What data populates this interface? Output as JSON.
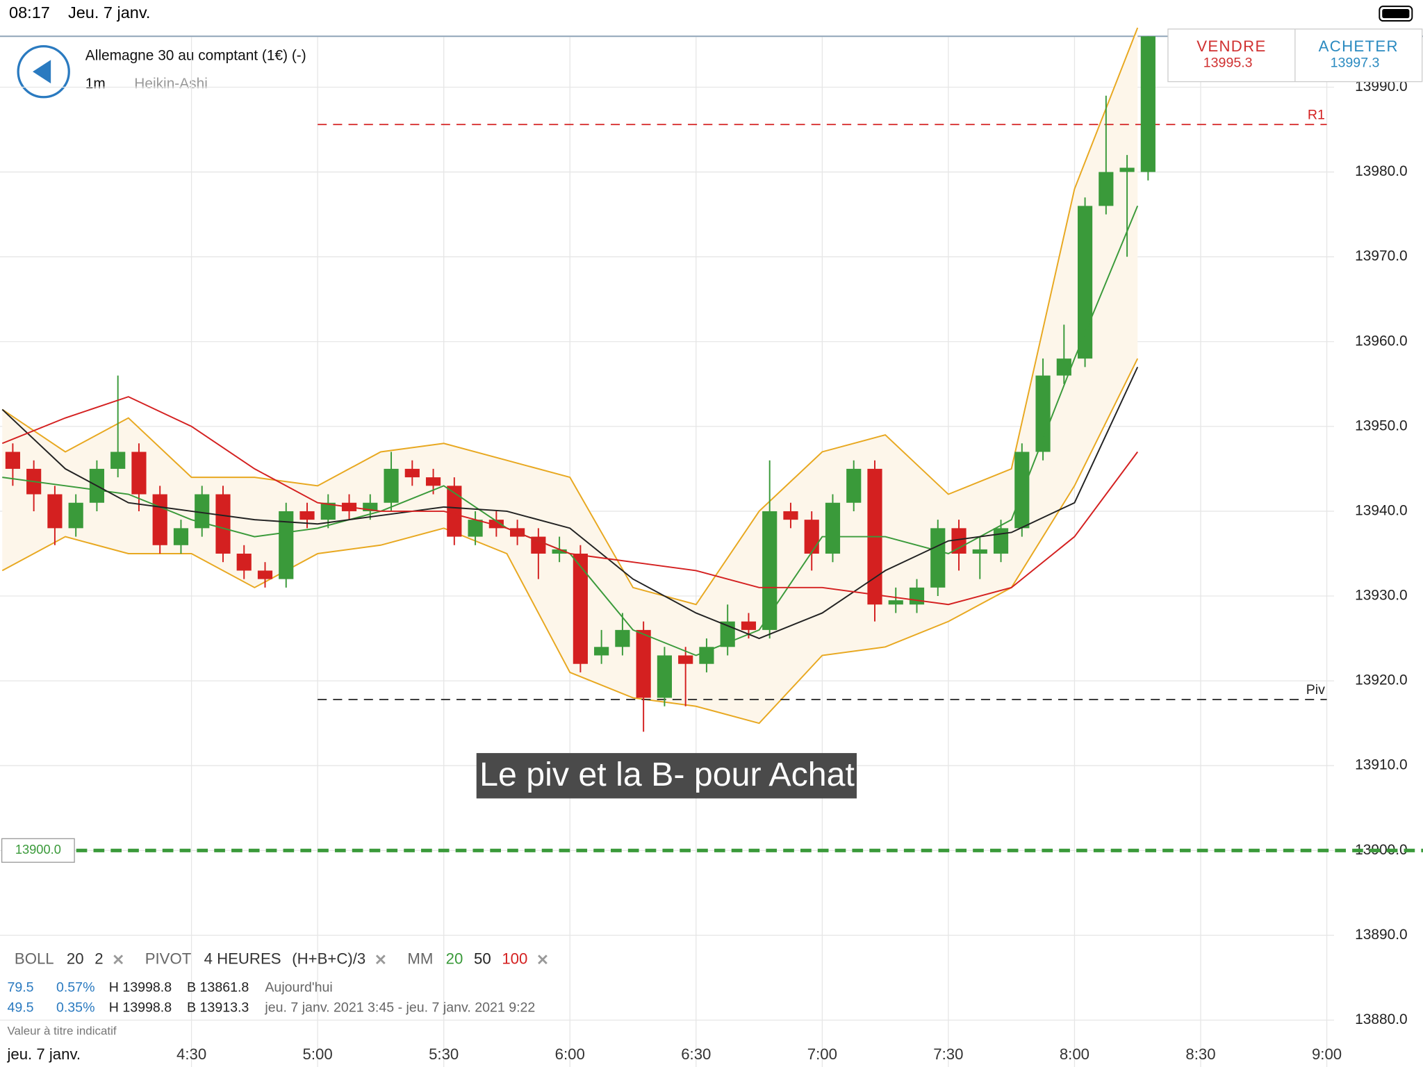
{
  "status_bar": {
    "time": "08:17",
    "date": "Jeu. 7 janv."
  },
  "header": {
    "title": "Allemagne 30 au comptant (1€) (-)",
    "interval": "1m",
    "style": "Heikin-Ashi"
  },
  "prices": {
    "sell_label": "VENDRE",
    "sell": 13995.3,
    "buy_label": "ACHETER",
    "buy": 13997.3
  },
  "annotation": "Le piv et la B- pour Achat",
  "indicators": [
    {
      "name": "BOLL",
      "params": [
        20,
        2
      ],
      "param_colors": [
        "#333",
        "#333"
      ]
    },
    {
      "name": "PIVOT",
      "params": [
        "4 HEURES",
        "(H+B+C)/3"
      ],
      "param_colors": [
        "#333",
        "#333"
      ]
    },
    {
      "name": "MM",
      "params": [
        20,
        50,
        100
      ],
      "param_colors": [
        "#3a9a3a",
        "#222",
        "#d42020"
      ]
    }
  ],
  "info_rows": [
    [
      "79.5",
      "0.57%",
      "H 13998.8",
      "B 13861.8",
      "Aujourd'hui"
    ],
    [
      "49.5",
      "0.35%",
      "H 13998.8",
      "B 13913.3",
      "jeu. 7 janv. 2021 3:45 - jeu. 7 janv. 2021 9:22"
    ]
  ],
  "disclaimer": "Valeur à titre indicatif",
  "date_label": "jeu. 7 janv.",
  "chart_data": {
    "type": "candlestick",
    "xlim": [
      225,
      540
    ],
    "xticks": [
      {
        "value": 270,
        "label": "4:30"
      },
      {
        "value": 300,
        "label": "5:00"
      },
      {
        "value": 330,
        "label": "5:30"
      },
      {
        "value": 360,
        "label": "6:00"
      },
      {
        "value": 390,
        "label": "6:30"
      },
      {
        "value": 420,
        "label": "7:00"
      },
      {
        "value": 450,
        "label": "7:30"
      },
      {
        "value": 480,
        "label": "8:00"
      },
      {
        "value": 510,
        "label": "8:30"
      },
      {
        "value": 540,
        "label": "9:00"
      }
    ],
    "ylim": [
      13878,
      13996
    ],
    "yticks": [
      {
        "value": 13880,
        "label": "13880.0"
      },
      {
        "value": 13890,
        "label": "13890.0"
      },
      {
        "value": 13900,
        "label": "13900.0"
      },
      {
        "value": 13910,
        "label": "13910.0"
      },
      {
        "value": 13920,
        "label": "13920.0"
      },
      {
        "value": 13930,
        "label": "13930.0"
      },
      {
        "value": 13940,
        "label": "13940.0"
      },
      {
        "value": 13950,
        "label": "13950.0"
      },
      {
        "value": 13960,
        "label": "13960.0"
      },
      {
        "value": 13970,
        "label": "13970.0"
      },
      {
        "value": 13980,
        "label": "13980.0"
      },
      {
        "value": 13990,
        "label": "13990.0"
      }
    ],
    "grid": true,
    "up_color": "#3a9a3a",
    "down_color": "#d42020",
    "x": [
      225,
      230,
      235,
      240,
      245,
      250,
      255,
      260,
      265,
      270,
      275,
      280,
      285,
      290,
      295,
      300,
      305,
      310,
      315,
      320,
      325,
      330,
      335,
      340,
      345,
      350,
      355,
      360,
      365,
      370,
      375,
      380,
      385,
      390,
      395,
      400,
      405,
      410,
      415,
      420,
      425,
      430,
      435,
      440,
      445,
      450,
      455,
      460,
      465,
      470,
      475,
      480,
      485,
      490,
      495
    ],
    "open": [
      13947,
      13945,
      13942,
      13938,
      13941,
      13945,
      13947,
      13942,
      13936,
      13938,
      13942,
      13935,
      13933,
      13932,
      13940,
      13939,
      13941,
      13940,
      13941,
      13945,
      13944,
      13943,
      13937,
      13939,
      13938,
      13937,
      13935,
      13935,
      13923,
      13924,
      13926,
      13918,
      13923,
      13922,
      13924,
      13927,
      13926,
      13940,
      13939,
      13935,
      13941,
      13945,
      13929,
      13929,
      13931,
      13938,
      13935,
      13935,
      13938,
      13947,
      13956,
      13958,
      13976,
      13980,
      13980
    ],
    "close": [
      13945,
      13942,
      13938,
      13941,
      13945,
      13947,
      13942,
      13936,
      13938,
      13942,
      13935,
      13933,
      13932,
      13940,
      13939,
      13941,
      13940,
      13941,
      13945,
      13944,
      13943,
      13937,
      13939,
      13938,
      13937,
      13935,
      13935.5,
      13922,
      13924,
      13926,
      13918,
      13923,
      13922,
      13924,
      13927,
      13926,
      13940,
      13939,
      13935,
      13941,
      13945,
      13929,
      13929.5,
      13931,
      13938,
      13935,
      13935.5,
      13938,
      13947,
      13956,
      13958,
      13976,
      13980,
      13980.5,
      13996
    ],
    "high": [
      13948,
      13946,
      13943,
      13942,
      13946,
      13956,
      13948,
      13943,
      13939,
      13943,
      13943,
      13936,
      13934,
      13941,
      13941,
      13942,
      13942,
      13942,
      13947,
      13946,
      13945,
      13944,
      13940,
      13940,
      13939,
      13938,
      13937,
      13936,
      13926,
      13928,
      13927,
      13924,
      13924,
      13925,
      13929,
      13928,
      13946,
      13941,
      13940,
      13942,
      13946,
      13946,
      13931,
      13932,
      13939,
      13939,
      13937,
      13939,
      13948,
      13958,
      13962,
      13977,
      13989,
      13982,
      13996
    ],
    "low": [
      13943,
      13940,
      13936,
      13937,
      13940,
      13944,
      13940,
      13935,
      13935,
      13937,
      13934,
      13932,
      13931,
      13931,
      13938,
      13938,
      13939,
      13939,
      13940,
      13943,
      13942,
      13936,
      13936,
      13937,
      13936,
      13932,
      13934,
      13921,
      13922,
      13923,
      13914,
      13917,
      13917,
      13921,
      13923,
      13925,
      13925,
      13938,
      13933,
      13934,
      13940,
      13927,
      13928,
      13928,
      13930,
      13933,
      13932,
      13934,
      13937,
      13946,
      13955,
      13957,
      13975,
      13970,
      13979
    ],
    "line_x": [
      225,
      240,
      255,
      270,
      285,
      300,
      315,
      330,
      345,
      360,
      375,
      390,
      405,
      420,
      435,
      450,
      465,
      480,
      495
    ],
    "band": {
      "color": "#e8a820",
      "fill": "#fdf6ea",
      "upper": [
        13952,
        13947,
        13951,
        13944,
        13944,
        13943,
        13947,
        13948,
        13946,
        13944,
        13931,
        13929,
        13940,
        13947,
        13949,
        13942,
        13945,
        13978,
        13997
      ],
      "lower": [
        13933,
        13937,
        13935,
        13935,
        13931,
        13935,
        13936,
        13938,
        13935,
        13921,
        13918,
        13917,
        13915,
        13923,
        13924,
        13927,
        13931,
        13943,
        13958
      ]
    },
    "lines": [
      {
        "color": "#3a9a3a",
        "values": [
          13944,
          13943,
          13942,
          13939,
          13937,
          13938,
          13940,
          13943,
          13938,
          13935,
          13926,
          13923,
          13926,
          13937,
          13937,
          13935,
          13939,
          13958,
          13976
        ]
      },
      {
        "color": "#222222",
        "values": [
          13952,
          13945,
          13941,
          13940,
          13939,
          13938.5,
          13939.5,
          13940.5,
          13940,
          13938,
          13932,
          13928,
          13925,
          13928,
          13933,
          13936.5,
          13937.5,
          13941,
          13957
        ]
      },
      {
        "color": "#d42020",
        "values": [
          13948,
          13951,
          13953.5,
          13950,
          13945,
          13941,
          13940,
          13940,
          13938,
          13935,
          13934,
          13933,
          13931,
          13931,
          13930,
          13929,
          13931,
          13937,
          13947
        ]
      }
    ],
    "levels": [
      {
        "label": "R1",
        "value": 13985.6,
        "color": "#d42020"
      },
      {
        "label": "Piv",
        "value": 13917.8,
        "color": "#222222"
      },
      {
        "label": "13900.0",
        "value": 13900,
        "color": "#3a9a3a"
      }
    ]
  }
}
